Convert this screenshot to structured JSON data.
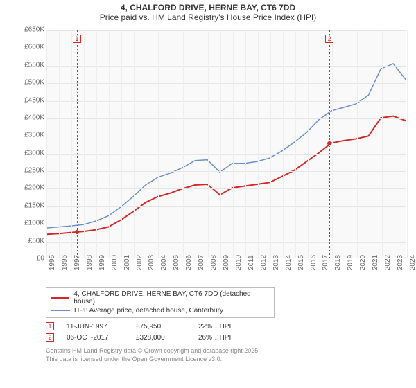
{
  "title_line1": "4, CHALFORD DRIVE, HERNE BAY, CT6 7DD",
  "title_line2": "Price paid vs. HM Land Registry's House Price Index (HPI)",
  "chart": {
    "type": "line",
    "x_years": [
      1995,
      1996,
      1997,
      1998,
      1999,
      2000,
      2001,
      2002,
      2003,
      2004,
      2005,
      2006,
      2007,
      2008,
      2009,
      2010,
      2011,
      2012,
      2013,
      2014,
      2015,
      2016,
      2017,
      2018,
      2019,
      2020,
      2021,
      2022,
      2023,
      2024
    ],
    "ylim": [
      0,
      650000
    ],
    "ytick_step": 50000,
    "y_labels": [
      "£0",
      "£50K",
      "£100K",
      "£150K",
      "£200K",
      "£250K",
      "£300K",
      "£350K",
      "£400K",
      "£450K",
      "£500K",
      "£550K",
      "£600K",
      "£650K"
    ],
    "background_color": "#f9f9f9",
    "grid_color": "#e5e5e5",
    "series": {
      "price_paid": {
        "label": "4, CHALFORD DRIVE, HERNE BAY, CT6 7DD (detached house)",
        "color": "#d62728",
        "line_width": 2,
        "values": [
          67000,
          69000,
          72000,
          75000,
          80000,
          88000,
          108000,
          132000,
          158000,
          175000,
          185000,
          198000,
          208000,
          210000,
          180000,
          200000,
          205000,
          210000,
          215000,
          232000,
          250000,
          275000,
          300000,
          328000,
          335000,
          340000,
          348000,
          400000,
          405000,
          392000
        ]
      },
      "hpi": {
        "label": "HPI: Average price, detached house, Canterbury",
        "color": "#6b8fc9",
        "line_width": 1.5,
        "values": [
          85000,
          88000,
          91000,
          95000,
          105000,
          120000,
          145000,
          175000,
          208000,
          230000,
          242000,
          258000,
          278000,
          280000,
          245000,
          270000,
          270000,
          275000,
          285000,
          305000,
          330000,
          358000,
          395000,
          420000,
          430000,
          440000,
          465000,
          540000,
          555000,
          510000
        ]
      }
    },
    "markers": [
      {
        "num": "1",
        "x_year": 1997.45,
        "y_value": 75950,
        "color": "#d62728"
      },
      {
        "num": "2",
        "x_year": 2017.77,
        "y_value": 328000,
        "color": "#d62728"
      }
    ]
  },
  "legend": {
    "rows": [
      {
        "color": "#d62728",
        "width": 2,
        "label": "4, CHALFORD DRIVE, HERNE BAY, CT6 7DD (detached house)"
      },
      {
        "color": "#6b8fc9",
        "width": 1.5,
        "label": "HPI: Average price, detached house, Canterbury"
      }
    ]
  },
  "transactions": [
    {
      "num": "1",
      "color": "#d62728",
      "date": "11-JUN-1997",
      "price": "£75,950",
      "diff": "22% ↓ HPI"
    },
    {
      "num": "2",
      "color": "#d62728",
      "date": "06-OCT-2017",
      "price": "£328,000",
      "diff": "26% ↓ HPI"
    }
  ],
  "attribution_line1": "Contains HM Land Registry data © Crown copyright and database right 2025.",
  "attribution_line2": "This data is licensed under the Open Government Licence v3.0."
}
